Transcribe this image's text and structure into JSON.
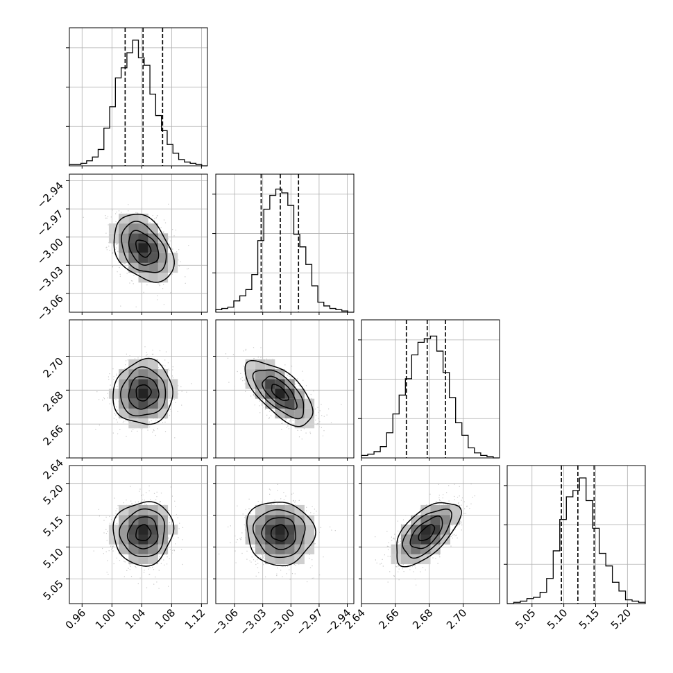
{
  "chart_data": {
    "type": "corner",
    "parameters": [
      {
        "range": [
          0.943,
          1.128
        ],
        "ticks": [
          0.96,
          1.0,
          1.04,
          1.08,
          1.12
        ],
        "tick_labels": [
          "0.96",
          "1.00",
          "1.04",
          "1.08",
          "1.12"
        ],
        "quantiles": [
          1.0177,
          1.0417,
          1.0679
        ],
        "histogram": [
          0.01,
          0.01,
          0.02,
          0.04,
          0.07,
          0.13,
          0.3,
          0.47,
          0.7,
          0.78,
          0.9,
          1.0,
          0.86,
          0.8,
          0.57,
          0.4,
          0.28,
          0.17,
          0.1,
          0.05,
          0.03,
          0.02,
          0.01,
          0.0
        ]
      },
      {
        "range": [
          -3.08,
          -2.933
        ],
        "ticks": [
          -3.06,
          -3.03,
          -3.0,
          -2.97,
          -2.94
        ],
        "tick_labels": [
          "−3.06",
          "−3.03",
          "−3.00",
          "−2.97",
          "−2.94"
        ],
        "quantiles": [
          -3.0317,
          -3.0113,
          -2.9919
        ],
        "histogram": [
          0.02,
          0.03,
          0.04,
          0.09,
          0.13,
          0.18,
          0.3,
          0.57,
          0.82,
          0.93,
          0.98,
          0.95,
          0.85,
          0.62,
          0.52,
          0.38,
          0.21,
          0.08,
          0.05,
          0.03,
          0.02,
          0.01,
          0.0
        ]
      },
      {
        "range": [
          2.64,
          2.7215
        ],
        "ticks": [
          2.64,
          2.66,
          2.68,
          2.7
        ],
        "tick_labels": [
          "2.64",
          "2.66",
          "2.68",
          "2.70"
        ],
        "quantiles": [
          2.6665,
          2.6788,
          2.6896
        ],
        "histogram": [
          0.02,
          0.03,
          0.05,
          0.09,
          0.2,
          0.35,
          0.5,
          0.63,
          0.82,
          0.92,
          0.95,
          0.97,
          0.85,
          0.68,
          0.48,
          0.28,
          0.18,
          0.08,
          0.04,
          0.02,
          0.01,
          0.0
        ]
      },
      {
        "range": [
          5.011,
          5.228
        ],
        "ticks": [
          5.05,
          5.1,
          5.15,
          5.2
        ],
        "tick_labels": [
          "5.05",
          "5.10",
          "5.15",
          "5.20"
        ],
        "quantiles": [
          5.0962,
          5.1221,
          5.1476
        ],
        "histogram": [
          0.0,
          0.01,
          0.02,
          0.04,
          0.05,
          0.09,
          0.2,
          0.42,
          0.67,
          0.85,
          0.9,
          1.0,
          0.82,
          0.6,
          0.4,
          0.3,
          0.17,
          0.1,
          0.03,
          0.02,
          0.01
        ]
      }
    ],
    "pairs": [
      {
        "x": 0,
        "y": 1,
        "center": [
          1.042,
          -3.012
        ],
        "sigma": [
          0.02,
          0.018
        ],
        "corr": -0.35
      },
      {
        "x": 0,
        "y": 2,
        "center": [
          1.042,
          2.6785
        ],
        "sigma": [
          0.02,
          0.0095
        ],
        "corr": 0.05
      },
      {
        "x": 1,
        "y": 2,
        "center": [
          -3.012,
          2.6785
        ],
        "sigma": [
          0.018,
          0.0095
        ],
        "corr": -0.65
      },
      {
        "x": 0,
        "y": 3,
        "center": [
          1.042,
          5.122
        ],
        "sigma": [
          0.02,
          0.025
        ],
        "corr": 0.05
      },
      {
        "x": 1,
        "y": 3,
        "center": [
          -3.012,
          5.122
        ],
        "sigma": [
          0.018,
          0.025
        ],
        "corr": -0.05
      },
      {
        "x": 2,
        "y": 3,
        "center": [
          2.6785,
          5.122
        ],
        "sigma": [
          0.0095,
          0.025
        ],
        "corr": 0.6
      }
    ],
    "contour_levels_sigma": [
      0.5,
      1.0,
      1.5,
      2.0
    ],
    "grid": true,
    "title": "",
    "xlabel": "",
    "ylabel": ""
  },
  "colors": {
    "line": "#000000",
    "grid": "#b0b0b0",
    "scatter": "#c8c8c8"
  }
}
